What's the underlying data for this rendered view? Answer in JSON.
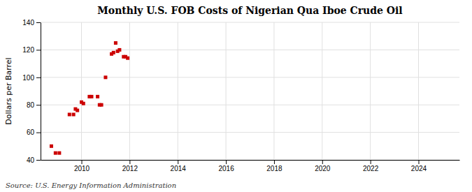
{
  "chart_data": {
    "type": "scatter",
    "title": "Monthly U.S. FOB Costs of Nigerian Qua Iboe Crude Oil",
    "ylabel": "Dollars per Barrel",
    "source": "Source: U.S. Energy Information Administration",
    "color": "#cc0000",
    "marker": "square",
    "grid": true,
    "xlim": [
      2008.3,
      2025.7
    ],
    "ylim": [
      40,
      140
    ],
    "xticks": [
      2010,
      2012,
      2014,
      2016,
      2018,
      2020,
      2022,
      2024
    ],
    "yticks": [
      40,
      60,
      80,
      100,
      120,
      140
    ],
    "x": [
      2008.75,
      2008.92,
      2009.08,
      2009.5,
      2009.67,
      2009.75,
      2009.83,
      2010.0,
      2010.08,
      2010.33,
      2010.42,
      2010.67,
      2010.75,
      2010.83,
      2011.0,
      2011.25,
      2011.33,
      2011.42,
      2011.5,
      2011.58,
      2011.75,
      2011.83,
      2011.92
    ],
    "values": [
      50,
      45,
      45,
      73,
      73,
      77,
      76,
      82,
      81,
      86,
      86,
      86,
      80,
      80,
      100,
      117,
      118,
      125,
      119,
      120,
      115,
      115,
      114
    ]
  }
}
